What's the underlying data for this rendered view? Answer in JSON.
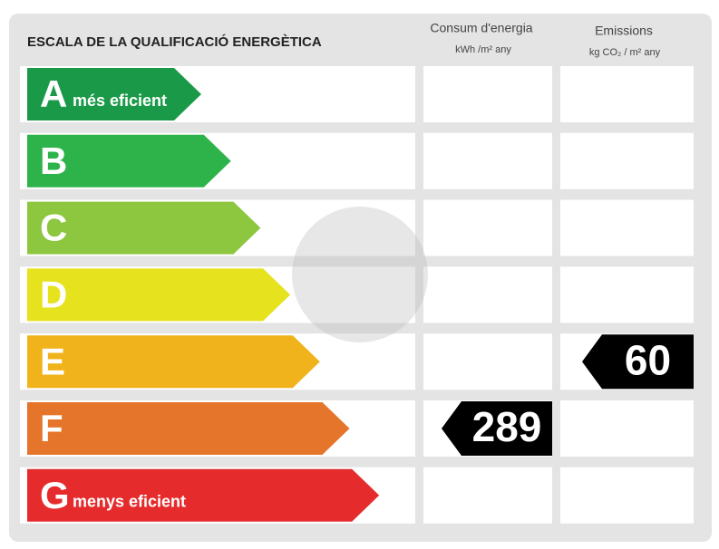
{
  "header": {
    "title": "ESCALA DE LA QUALIFICACIÓ ENERGÈTICA",
    "consumption_title": "Consum d'energia",
    "consumption_unit": "kWh /m² any",
    "emissions_title": "Emissions",
    "emissions_unit": "kg CO₂ / m² any"
  },
  "rows": [
    {
      "letter": "A",
      "label": "més eficient",
      "color": "#1a9a48"
    },
    {
      "letter": "B",
      "color": "#2db34a"
    },
    {
      "letter": "C",
      "color": "#8dc63f"
    },
    {
      "letter": "D",
      "color": "#e6e21d"
    },
    {
      "letter": "E",
      "color": "#f1b31c",
      "emissions": 60
    },
    {
      "letter": "F",
      "color": "#e5752a",
      "consumption": 289
    },
    {
      "letter": "G",
      "label": "menys eficient",
      "color": "#e52b2c"
    }
  ]
}
